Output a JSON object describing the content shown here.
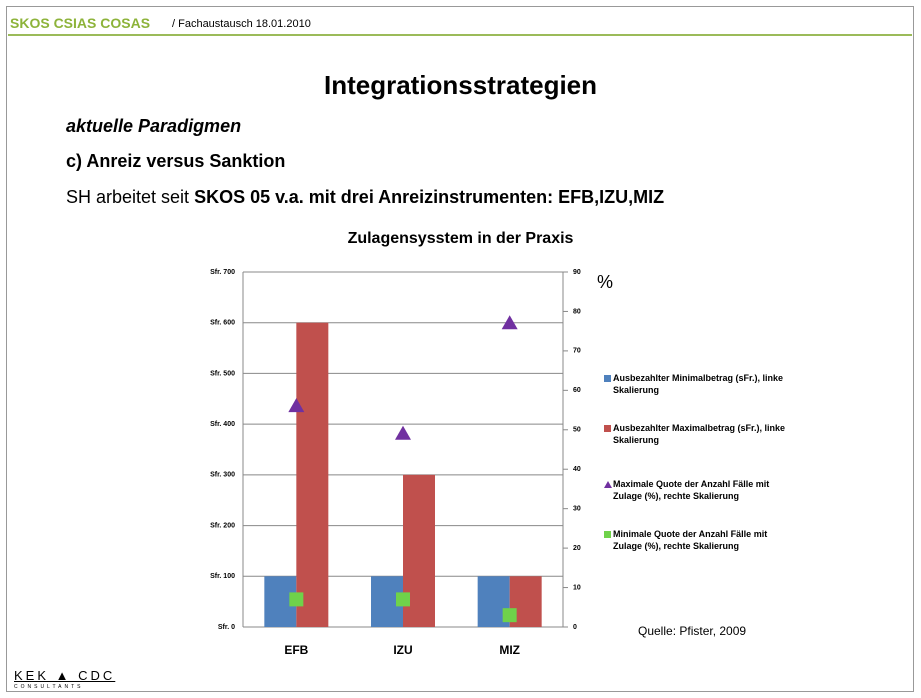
{
  "header": {
    "brand": "SKOS CSIAS COSAS",
    "context": "/ Fachaustausch 18.01.2010"
  },
  "title": "Integrationsstrategien",
  "subtitle": "aktuelle Paradigmen",
  "section": "c) Anreiz versus Sanktion",
  "statement": {
    "normal": "SH arbeitet seit",
    "bold": "SKOS 05 v.a. mit drei Anreizinstrumenten: EFB,IZU,MIZ"
  },
  "chart_data": {
    "type": "bar",
    "title": "Zulagensysstem in der Praxis",
    "categories": [
      "EFB",
      "IZU",
      "MIZ"
    ],
    "series": [
      {
        "name": "Ausbezahlter Minimalbetrag (sFr.), linke Skalierung",
        "color": "#4f81bd",
        "kind": "bar",
        "values": [
          100,
          100,
          100
        ]
      },
      {
        "name": "Ausbezahlter Maximalbetrag (sFr.), linke Skalierung",
        "color": "#c0504d",
        "kind": "bar",
        "values": [
          600,
          300,
          100
        ]
      },
      {
        "name": "Maximale Quote der Anzahl Fälle mit Zulage (%), rechte Skalierung",
        "color": "#7030a0",
        "kind": "scatter",
        "marker": "triangle",
        "axis": "y2",
        "values": [
          56,
          49,
          77
        ]
      },
      {
        "name": "Minimale Quote der Anzahl Fälle mit Zulage (%), rechte Skalierung",
        "color": "#6fd24a",
        "kind": "scatter",
        "marker": "square",
        "axis": "y2",
        "values": [
          7,
          7,
          3
        ]
      }
    ],
    "ylim": [
      0,
      700
    ],
    "yticks": [
      {
        "value": 0,
        "label": "Sfr. 0"
      },
      {
        "value": 100,
        "label": "Sfr. 100"
      },
      {
        "value": 200,
        "label": "Sfr. 200"
      },
      {
        "value": 300,
        "label": "Sfr. 300"
      },
      {
        "value": 400,
        "label": "Sfr. 400"
      },
      {
        "value": 500,
        "label": "Sfr. 500"
      },
      {
        "value": 600,
        "label": "Sfr. 600"
      },
      {
        "value": 700,
        "label": "Sfr. 700"
      }
    ],
    "y2lim": [
      0,
      90
    ],
    "y2ticks": [
      0,
      10,
      20,
      30,
      40,
      50,
      60,
      70,
      80,
      90
    ],
    "y2label": "%",
    "grid": true,
    "legend": "right",
    "source": "Quelle: Pfister, 2009"
  },
  "footer": {
    "logo": "KEK ▲ CDC",
    "tagline": "CONSULTANTS"
  }
}
